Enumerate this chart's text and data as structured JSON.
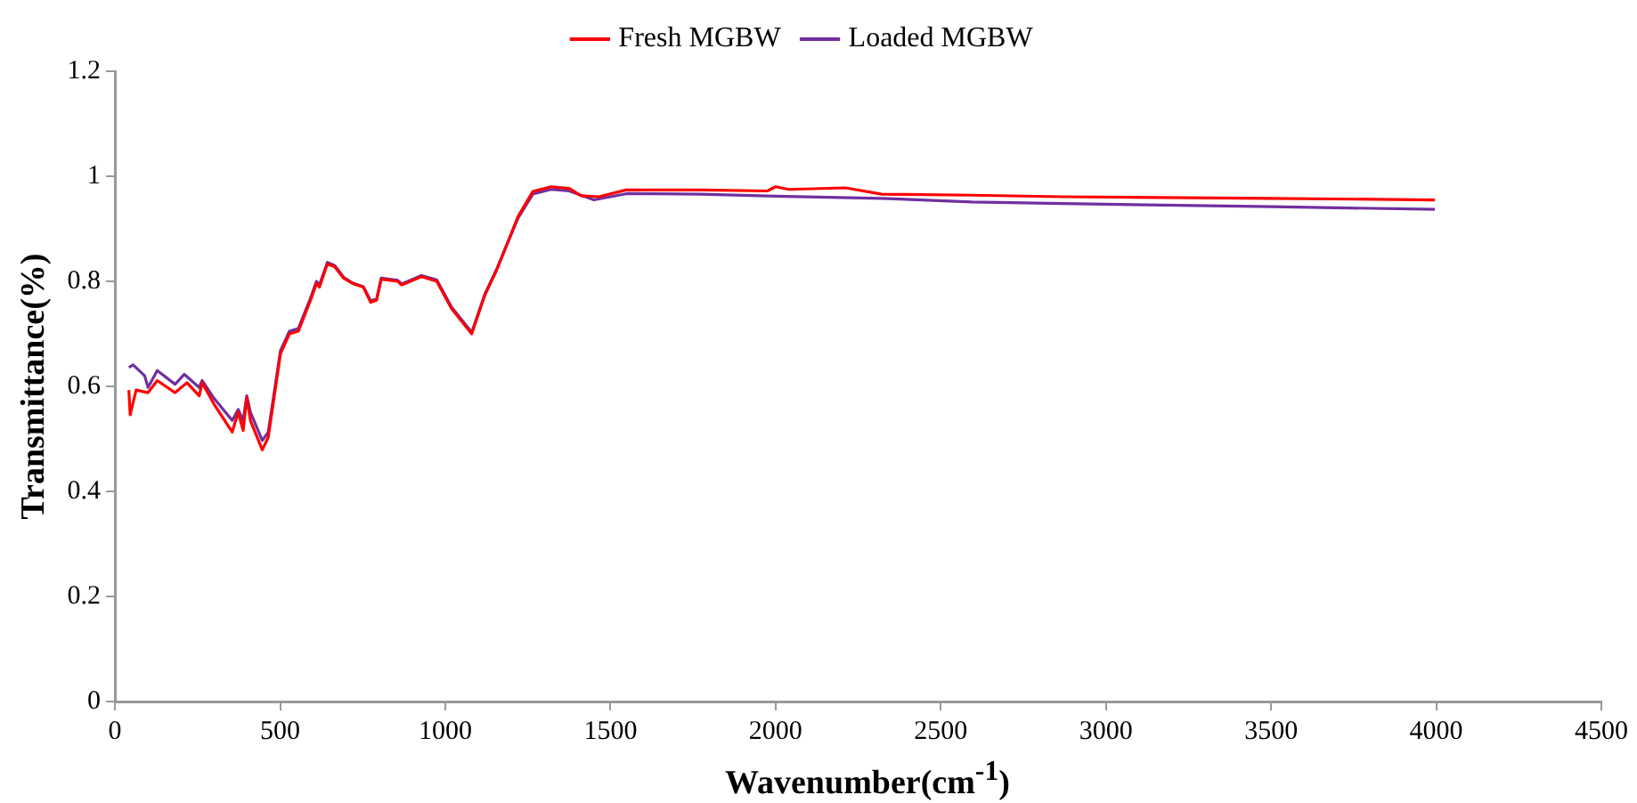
{
  "chart_data": {
    "type": "line",
    "xlabel": "Wavenumber(cm$^{-1}$)",
    "ylabel": "Transmittance(%)",
    "xlim": [
      0,
      4500
    ],
    "xticks": [
      0,
      500,
      1000,
      1500,
      2000,
      2500,
      3000,
      3500,
      4000,
      4500
    ],
    "ylim": [
      0,
      1.2
    ],
    "yticks": [
      0,
      0.2,
      0.4,
      0.6,
      0.8,
      1,
      1.2
    ],
    "grid": false,
    "legend": "top",
    "marker": "none",
    "line_style": "solid",
    "series": [
      {
        "name": "Fresh MGBW",
        "color": "#ff0000",
        "x": [
          42,
          46,
          64,
          100,
          128,
          182,
          218,
          255,
          264,
          300,
          355,
          373,
          388,
          399,
          410,
          446,
          464,
          501,
          528,
          555,
          592,
          610,
          619,
          643,
          665,
          692,
          719,
          752,
          774,
          792,
          806,
          856,
          868,
          928,
          974,
          1019,
          1080,
          1120,
          1156,
          1220,
          1265,
          1320,
          1375,
          1411,
          1465,
          1547,
          1775,
          1975,
          2000,
          2040,
          2212,
          2321,
          2594,
          2867,
          3500,
          3996
        ],
        "values": [
          0.593,
          0.546,
          0.593,
          0.588,
          0.611,
          0.588,
          0.607,
          0.582,
          0.607,
          0.566,
          0.513,
          0.551,
          0.516,
          0.579,
          0.535,
          0.479,
          0.503,
          0.662,
          0.7,
          0.705,
          0.764,
          0.796,
          0.789,
          0.833,
          0.828,
          0.806,
          0.796,
          0.789,
          0.76,
          0.764,
          0.804,
          0.8,
          0.793,
          0.809,
          0.8,
          0.748,
          0.7,
          0.774,
          0.822,
          0.923,
          0.971,
          0.98,
          0.977,
          0.963,
          0.961,
          0.974,
          0.974,
          0.972,
          0.98,
          0.975,
          0.978,
          0.966,
          0.964,
          0.961,
          0.958,
          0.955
        ]
      },
      {
        "name": "Loaded MGBW",
        "color": "#7030a0",
        "x": [
          42,
          55,
          90,
          100,
          128,
          182,
          210,
          255,
          264,
          300,
          355,
          373,
          388,
          399,
          410,
          446,
          464,
          501,
          528,
          555,
          592,
          610,
          619,
          643,
          665,
          692,
          719,
          752,
          774,
          792,
          806,
          856,
          868,
          928,
          974,
          1019,
          1080,
          1120,
          1156,
          1220,
          1265,
          1320,
          1375,
          1450,
          1550,
          1775,
          2000,
          2321,
          2594,
          2867,
          3500,
          3996
        ],
        "values": [
          0.636,
          0.641,
          0.62,
          0.598,
          0.63,
          0.604,
          0.623,
          0.598,
          0.611,
          0.577,
          0.535,
          0.556,
          0.535,
          0.582,
          0.551,
          0.497,
          0.513,
          0.668,
          0.705,
          0.71,
          0.768,
          0.8,
          0.793,
          0.836,
          0.83,
          0.808,
          0.797,
          0.79,
          0.763,
          0.766,
          0.806,
          0.802,
          0.795,
          0.811,
          0.803,
          0.751,
          0.703,
          0.776,
          0.824,
          0.92,
          0.966,
          0.975,
          0.972,
          0.955,
          0.967,
          0.966,
          0.962,
          0.958,
          0.951,
          0.948,
          0.942,
          0.937
        ]
      }
    ]
  }
}
